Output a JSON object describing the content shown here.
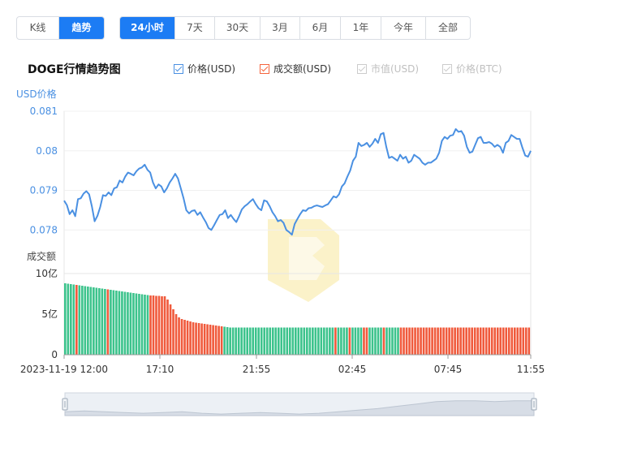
{
  "view_tabs": [
    {
      "label": "K线",
      "active": false
    },
    {
      "label": "趋势",
      "active": true
    }
  ],
  "range_tabs": [
    {
      "label": "24小时",
      "active": true
    },
    {
      "label": "7天",
      "active": false
    },
    {
      "label": "30天",
      "active": false
    },
    {
      "label": "3月",
      "active": false
    },
    {
      "label": "6月",
      "active": false
    },
    {
      "label": "1年",
      "active": false
    },
    {
      "label": "今年",
      "active": false
    },
    {
      "label": "全部",
      "active": false
    }
  ],
  "legend": [
    {
      "label": "价格(USD)",
      "checked": true,
      "color": "#4a90e2"
    },
    {
      "label": "成交额(USD)",
      "checked": true,
      "color": "#f5643c"
    },
    {
      "label": "市值(USD)",
      "checked": false,
      "color": "#cccccc"
    },
    {
      "label": "价格(BTC)",
      "checked": false,
      "color": "#cccccc"
    }
  ],
  "colors": {
    "price_line": "#4a90e2",
    "volume_up": "#3cc38c",
    "volume_down": "#f05a3c",
    "navigator_fill": "#d7dde6",
    "axis_text": "#333333",
    "price_axis_text": "#4a90e2",
    "watermark": "#fbf2c9"
  },
  "chart_data": {
    "type": "line",
    "title": "DOGE行情趋势图",
    "price_axis_label": "USD价格",
    "volume_axis_label": "成交额",
    "x_tick_labels": [
      "2023-11-19 12:00",
      "17:10",
      "21:55",
      "02:45",
      "07:45",
      "11:55"
    ],
    "price_ticks": [
      "0.081",
      "0.08",
      "0.079",
      "0.078"
    ],
    "price_ylim": [
      0.0769,
      0.081
    ],
    "volume_ticks": [
      "10亿",
      "5亿",
      "0"
    ],
    "volume_ylim": [
      0,
      10
    ],
    "price_series": {
      "name": "价格(USD)",
      "values": [
        0.07874,
        0.07863,
        0.0784,
        0.0785,
        0.07835,
        0.07878,
        0.0788,
        0.07892,
        0.07898,
        0.0789,
        0.0786,
        0.07822,
        0.07836,
        0.07858,
        0.07888,
        0.07886,
        0.07895,
        0.07888,
        0.07905,
        0.07908,
        0.07925,
        0.0792,
        0.07935,
        0.07945,
        0.07942,
        0.07938,
        0.07948,
        0.07955,
        0.07958,
        0.07965,
        0.07952,
        0.07945,
        0.0792,
        0.07905,
        0.07915,
        0.0791,
        0.07895,
        0.07905,
        0.0792,
        0.0793,
        0.07942,
        0.0793,
        0.07905,
        0.0788,
        0.0785,
        0.07842,
        0.07848,
        0.0785,
        0.07838,
        0.07845,
        0.07832,
        0.0782,
        0.07805,
        0.078,
        0.07812,
        0.07825,
        0.07838,
        0.0784,
        0.0785,
        0.0783,
        0.07838,
        0.07828,
        0.0782,
        0.07835,
        0.07852,
        0.0786,
        0.07865,
        0.07872,
        0.07878,
        0.07865,
        0.07855,
        0.0785,
        0.07875,
        0.07872,
        0.0786,
        0.07845,
        0.07835,
        0.07822,
        0.07825,
        0.07818,
        0.078,
        0.07795,
        0.07788,
        0.07815,
        0.07828,
        0.0784,
        0.0785,
        0.07848,
        0.07855,
        0.07856,
        0.0786,
        0.07862,
        0.0786,
        0.07858,
        0.07862,
        0.07865,
        0.07875,
        0.07885,
        0.07882,
        0.0789,
        0.0791,
        0.07918,
        0.07935,
        0.0795,
        0.07975,
        0.07985,
        0.0802,
        0.08012,
        0.08015,
        0.0802,
        0.0801,
        0.08018,
        0.0803,
        0.0802,
        0.08042,
        0.08045,
        0.0801,
        0.07982,
        0.07985,
        0.0798,
        0.07975,
        0.0799,
        0.0798,
        0.07985,
        0.0797,
        0.07975,
        0.0799,
        0.07985,
        0.0798,
        0.0797,
        0.07965,
        0.0797,
        0.0797,
        0.07975,
        0.0798,
        0.07995,
        0.08025,
        0.08035,
        0.0803,
        0.08038,
        0.0804,
        0.08055,
        0.08048,
        0.0805,
        0.08038,
        0.0801,
        0.07995,
        0.07998,
        0.08015,
        0.08032,
        0.08035,
        0.0802,
        0.0802,
        0.08022,
        0.08018,
        0.0801,
        0.08015,
        0.0801,
        0.07995,
        0.0802,
        0.08025,
        0.0804,
        0.08035,
        0.0803,
        0.0803,
        0.08008,
        0.07988,
        0.07985,
        0.08
      ],
      "visual_ref": [
        0.0769,
        0.081
      ]
    },
    "volume_series": {
      "name": "成交额(USD)",
      "values": [
        8.8,
        8.75,
        8.7,
        8.65,
        8.6,
        8.55,
        8.5,
        8.45,
        8.4,
        8.35,
        8.3,
        8.25,
        8.2,
        8.15,
        8.1,
        8.05,
        8.0,
        7.95,
        7.9,
        7.85,
        7.8,
        7.75,
        7.7,
        7.65,
        7.6,
        7.55,
        7.5,
        7.45,
        7.4,
        7.35,
        7.3,
        7.3,
        7.25,
        7.25,
        7.2,
        7.2,
        6.8,
        6.2,
        5.6,
        5.0,
        4.6,
        4.4,
        4.3,
        4.2,
        4.1,
        4.0,
        3.95,
        3.9,
        3.85,
        3.8,
        3.75,
        3.7,
        3.65,
        3.6,
        3.55,
        3.5,
        3.45,
        3.4,
        3.35,
        3.35,
        3.35,
        3.35,
        3.35,
        3.35,
        3.35,
        3.35,
        3.35,
        3.35,
        3.35,
        3.35,
        3.35,
        3.35,
        3.35,
        3.35,
        3.35,
        3.35,
        3.35,
        3.35,
        3.35,
        3.35,
        3.35,
        3.35,
        3.35,
        3.35,
        3.35,
        3.35,
        3.35,
        3.35,
        3.35,
        3.35,
        3.35,
        3.35,
        3.35,
        3.35,
        3.35,
        3.35,
        3.35,
        3.35,
        3.35,
        3.35,
        3.35,
        3.35,
        3.35,
        3.35,
        3.35,
        3.35,
        3.35,
        3.35,
        3.35,
        3.35,
        3.35,
        3.35,
        3.35,
        3.35,
        3.35,
        3.35,
        3.35,
        3.35,
        3.35,
        3.35,
        3.35,
        3.35,
        3.35,
        3.35,
        3.35,
        3.35,
        3.35,
        3.35,
        3.35,
        3.35,
        3.35,
        3.35,
        3.35,
        3.35,
        3.35,
        3.35,
        3.35,
        3.35,
        3.35,
        3.35,
        3.35,
        3.35,
        3.35,
        3.35,
        3.35,
        3.35,
        3.35,
        3.35,
        3.35,
        3.35,
        3.35,
        3.35,
        3.35,
        3.35,
        3.35,
        3.35,
        3.35,
        3.35,
        3.35,
        3.35,
        3.35,
        3.35,
        3.35,
        3.35
      ],
      "red_indices": [
        4,
        15,
        30,
        31,
        32,
        33,
        34,
        35,
        36,
        37,
        38,
        39,
        40,
        41,
        42,
        43,
        44,
        45,
        46,
        47,
        48,
        49,
        50,
        51,
        52,
        53,
        54,
        55,
        95,
        100,
        105,
        106,
        112,
        118,
        119,
        120,
        121,
        122,
        123,
        124,
        125,
        126,
        127,
        128,
        129,
        130,
        131,
        132,
        133,
        134,
        135,
        136,
        137,
        138,
        139,
        140,
        141,
        142,
        143,
        144,
        145,
        146,
        147,
        148,
        149,
        150,
        151,
        152,
        153,
        154,
        155,
        156,
        157,
        158,
        159,
        160,
        161,
        162,
        163,
        164,
        165,
        166,
        167,
        168,
        169
      ]
    },
    "navigator": {
      "values": [
        0.0788,
        0.0789,
        0.0788,
        0.0787,
        0.0786,
        0.0787,
        0.0788,
        0.0786,
        0.0785,
        0.0786,
        0.0787,
        0.0786,
        0.0785,
        0.0786,
        0.0788,
        0.079,
        0.0792,
        0.0795,
        0.0798,
        0.0801,
        0.0802,
        0.0802,
        0.0801,
        0.0802,
        0.0802
      ]
    }
  }
}
